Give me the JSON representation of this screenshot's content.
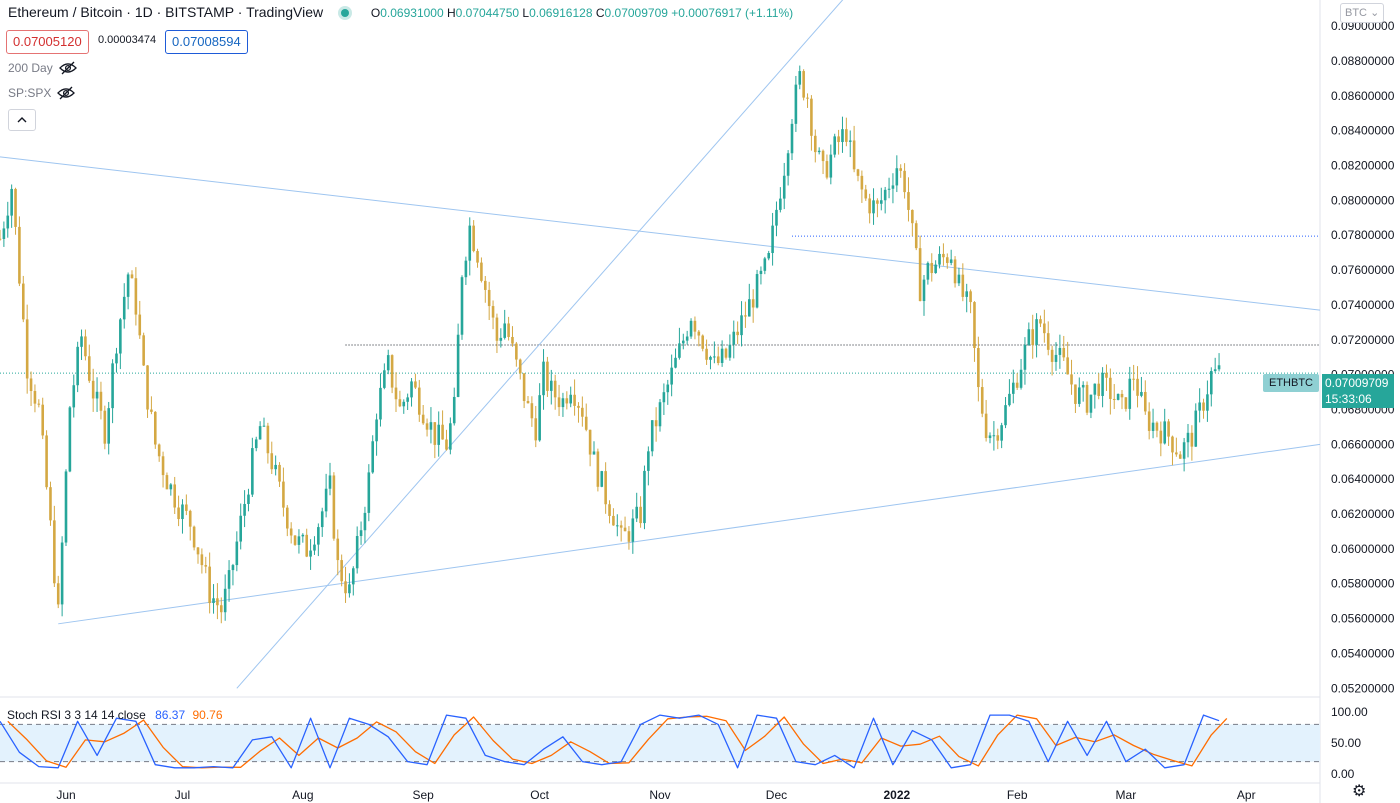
{
  "header": {
    "symbol": "Ethereum / Bitcoin · 1D · BITSTAMP · TradingView",
    "ohlc": {
      "o_label": "O",
      "o": "0.06931000",
      "h_label": "H",
      "h": "0.07044750",
      "l_label": "L",
      "l": "0.06916128",
      "c_label": "C",
      "c": "0.07009709",
      "change": "+0.00076917 (+1.11%)"
    },
    "bid": "0.07005120",
    "spread": "0.00003474",
    "ask": "0.07008594",
    "indicators": [
      "200 Day",
      "SP:SPX"
    ],
    "currency_dropdown": "BTC"
  },
  "price_tags": {
    "symbol": "ETHBTC",
    "price": "0.07009709",
    "countdown": "15:33:06"
  },
  "stoch_rsi": {
    "label": "Stoch RSI 3 3 14 14 close",
    "k": "86.37",
    "d": "90.76",
    "levels": [
      "100.00",
      "50.00",
      "0.00"
    ]
  },
  "colors": {
    "up": "#26a69a",
    "down": "#d4a843",
    "trendline": "#9ec5f0",
    "k_line": "#2962ff",
    "d_line": "#ff6d00",
    "band": "#e3f2fd"
  },
  "chart_data": {
    "type": "candlestick",
    "y_axis_labels": [
      "0.09000000",
      "0.08800000",
      "0.08600000",
      "0.08400000",
      "0.08200000",
      "0.08000000",
      "0.07800000",
      "0.07600000",
      "0.07400000",
      "0.07200000",
      "0.07000000",
      "0.06800000",
      "0.06600000",
      "0.06400000",
      "0.06200000",
      "0.06000000",
      "0.05800000",
      "0.05600000",
      "0.05400000",
      "0.05200000"
    ],
    "ylim": [
      0.0515,
      0.0915
    ],
    "x_axis_labels": [
      "Jun",
      "Jul",
      "Aug",
      "Sep",
      "Oct",
      "Nov",
      "Dec",
      "2022",
      "Feb",
      "Mar",
      "Apr"
    ],
    "x_start": "2021-05-15",
    "x_end": "2022-04-20",
    "close_path": [
      [
        "2021-05-15",
        0.0778
      ],
      [
        "2021-05-18",
        0.0808
      ],
      [
        "2021-05-22",
        0.0705
      ],
      [
        "2021-05-25",
        0.068
      ],
      [
        "2021-05-28",
        0.0612
      ],
      [
        "2021-05-30",
        0.0562
      ],
      [
        "2021-06-02",
        0.0682
      ],
      [
        "2021-06-05",
        0.0722
      ],
      [
        "2021-06-08",
        0.069
      ],
      [
        "2021-06-11",
        0.0668
      ],
      [
        "2021-06-14",
        0.072
      ],
      [
        "2021-06-17",
        0.0758
      ],
      [
        "2021-06-19",
        0.074
      ],
      [
        "2021-06-21",
        0.07
      ],
      [
        "2021-06-24",
        0.066
      ],
      [
        "2021-06-27",
        0.064
      ],
      [
        "2021-06-30",
        0.0625
      ],
      [
        "2021-07-03",
        0.0615
      ],
      [
        "2021-07-05",
        0.06
      ],
      [
        "2021-07-08",
        0.0575
      ],
      [
        "2021-07-11",
        0.0565
      ],
      [
        "2021-07-13",
        0.058
      ],
      [
        "2021-07-16",
        0.0615
      ],
      [
        "2021-07-19",
        0.065
      ],
      [
        "2021-07-21",
        0.067
      ],
      [
        "2021-07-24",
        0.065
      ],
      [
        "2021-07-27",
        0.0625
      ],
      [
        "2021-07-30",
        0.0605
      ],
      [
        "2021-08-02",
        0.06
      ],
      [
        "2021-08-05",
        0.0615
      ],
      [
        "2021-08-08",
        0.0635
      ],
      [
        "2021-08-10",
        0.059
      ],
      [
        "2021-08-13",
        0.0575
      ],
      [
        "2021-08-15",
        0.06
      ],
      [
        "2021-08-18",
        0.064
      ],
      [
        "2021-08-20",
        0.068
      ],
      [
        "2021-08-23",
        0.0705
      ],
      [
        "2021-08-26",
        0.068
      ],
      [
        "2021-08-29",
        0.0695
      ],
      [
        "2021-09-01",
        0.068
      ],
      [
        "2021-09-04",
        0.0665
      ],
      [
        "2021-09-07",
        0.066
      ],
      [
        "2021-09-09",
        0.068
      ],
      [
        "2021-09-11",
        0.076
      ],
      [
        "2021-09-13",
        0.0785
      ],
      [
        "2021-09-15",
        0.077
      ],
      [
        "2021-09-18",
        0.074
      ],
      [
        "2021-09-20",
        0.072
      ],
      [
        "2021-09-22",
        0.073
      ],
      [
        "2021-09-25",
        0.0705
      ],
      [
        "2021-09-28",
        0.068
      ],
      [
        "2021-09-30",
        0.067
      ],
      [
        "2021-10-02",
        0.07
      ],
      [
        "2021-10-04",
        0.069
      ],
      [
        "2021-10-07",
        0.0685
      ],
      [
        "2021-10-09",
        0.0695
      ],
      [
        "2021-10-12",
        0.068
      ],
      [
        "2021-10-15",
        0.065
      ],
      [
        "2021-10-18",
        0.063
      ],
      [
        "2021-10-20",
        0.062
      ],
      [
        "2021-10-22",
        0.0605
      ],
      [
        "2021-10-24",
        0.061
      ],
      [
        "2021-10-27",
        0.062
      ],
      [
        "2021-10-29",
        0.066
      ],
      [
        "2021-11-01",
        0.068
      ],
      [
        "2021-11-04",
        0.07
      ],
      [
        "2021-11-07",
        0.072
      ],
      [
        "2021-11-09",
        0.0735
      ],
      [
        "2021-11-12",
        0.072
      ],
      [
        "2021-11-15",
        0.0705
      ],
      [
        "2021-11-18",
        0.071
      ],
      [
        "2021-11-21",
        0.0725
      ],
      [
        "2021-11-24",
        0.074
      ],
      [
        "2021-11-27",
        0.0755
      ],
      [
        "2021-11-29",
        0.0765
      ],
      [
        "2021-12-01",
        0.0795
      ],
      [
        "2021-12-03",
        0.082
      ],
      [
        "2021-12-05",
        0.085
      ],
      [
        "2021-12-07",
        0.087
      ],
      [
        "2021-12-09",
        0.086
      ],
      [
        "2021-12-11",
        0.083
      ],
      [
        "2021-12-13",
        0.0815
      ],
      [
        "2021-12-16",
        0.083
      ],
      [
        "2021-12-19",
        0.084
      ],
      [
        "2021-12-21",
        0.0815
      ],
      [
        "2021-12-24",
        0.08
      ],
      [
        "2021-12-27",
        0.0795
      ],
      [
        "2021-12-29",
        0.0805
      ],
      [
        "2022-01-01",
        0.082
      ],
      [
        "2022-01-03",
        0.081
      ],
      [
        "2022-01-05",
        0.078
      ],
      [
        "2022-01-07",
        0.075
      ],
      [
        "2022-01-09",
        0.076
      ],
      [
        "2022-01-12",
        0.0765
      ],
      [
        "2022-01-15",
        0.077
      ],
      [
        "2022-01-17",
        0.075
      ],
      [
        "2022-01-20",
        0.0735
      ],
      [
        "2022-01-22",
        0.069
      ],
      [
        "2022-01-24",
        0.067
      ],
      [
        "2022-01-26",
        0.0665
      ],
      [
        "2022-01-29",
        0.068
      ],
      [
        "2022-02-01",
        0.07
      ],
      [
        "2022-02-04",
        0.072
      ],
      [
        "2022-02-07",
        0.073
      ],
      [
        "2022-02-10",
        0.0715
      ],
      [
        "2022-02-13",
        0.0705
      ],
      [
        "2022-02-16",
        0.069
      ],
      [
        "2022-02-19",
        0.0685
      ],
      [
        "2022-02-22",
        0.0695
      ],
      [
        "2022-02-25",
        0.069
      ],
      [
        "2022-02-28",
        0.068
      ],
      [
        "2022-03-03",
        0.07
      ],
      [
        "2022-03-06",
        0.0675
      ],
      [
        "2022-03-09",
        0.067
      ],
      [
        "2022-03-12",
        0.0665
      ],
      [
        "2022-03-15",
        0.0655
      ],
      [
        "2022-03-18",
        0.0665
      ],
      [
        "2022-03-21",
        0.0685
      ],
      [
        "2022-03-23",
        0.07
      ],
      [
        "2022-03-25",
        0.0701
      ]
    ],
    "stoch_path": [
      [
        "2021-05-15",
        85
      ],
      [
        "2021-05-20",
        35
      ],
      [
        "2021-05-25",
        12
      ],
      [
        "2021-05-30",
        10
      ],
      [
        "2021-06-04",
        85
      ],
      [
        "2021-06-09",
        30
      ],
      [
        "2021-06-14",
        90
      ],
      [
        "2021-06-19",
        85
      ],
      [
        "2021-06-24",
        15
      ],
      [
        "2021-06-29",
        10
      ],
      [
        "2021-07-04",
        10
      ],
      [
        "2021-07-09",
        12
      ],
      [
        "2021-07-14",
        10
      ],
      [
        "2021-07-19",
        55
      ],
      [
        "2021-07-24",
        60
      ],
      [
        "2021-07-29",
        10
      ],
      [
        "2021-08-03",
        90
      ],
      [
        "2021-08-08",
        10
      ],
      [
        "2021-08-13",
        90
      ],
      [
        "2021-08-18",
        80
      ],
      [
        "2021-08-23",
        60
      ],
      [
        "2021-08-28",
        20
      ],
      [
        "2021-09-02",
        15
      ],
      [
        "2021-09-07",
        95
      ],
      [
        "2021-09-12",
        90
      ],
      [
        "2021-09-17",
        30
      ],
      [
        "2021-09-22",
        20
      ],
      [
        "2021-09-27",
        15
      ],
      [
        "2021-10-02",
        40
      ],
      [
        "2021-10-07",
        60
      ],
      [
        "2021-10-12",
        20
      ],
      [
        "2021-10-17",
        15
      ],
      [
        "2021-10-22",
        20
      ],
      [
        "2021-10-27",
        80
      ],
      [
        "2021-11-01",
        95
      ],
      [
        "2021-11-06",
        90
      ],
      [
        "2021-11-11",
        95
      ],
      [
        "2021-11-16",
        80
      ],
      [
        "2021-11-21",
        10
      ],
      [
        "2021-11-26",
        95
      ],
      [
        "2021-12-01",
        90
      ],
      [
        "2021-12-06",
        20
      ],
      [
        "2021-12-11",
        15
      ],
      [
        "2021-12-16",
        30
      ],
      [
        "2021-12-21",
        10
      ],
      [
        "2021-12-26",
        90
      ],
      [
        "2021-12-31",
        15
      ],
      [
        "2022-01-05",
        70
      ],
      [
        "2022-01-10",
        55
      ],
      [
        "2022-01-15",
        10
      ],
      [
        "2022-01-20",
        15
      ],
      [
        "2022-01-25",
        95
      ],
      [
        "2022-01-30",
        95
      ],
      [
        "2022-02-04",
        85
      ],
      [
        "2022-02-09",
        20
      ],
      [
        "2022-02-14",
        85
      ],
      [
        "2022-02-19",
        30
      ],
      [
        "2022-02-24",
        85
      ],
      [
        "2022-03-01",
        20
      ],
      [
        "2022-03-06",
        40
      ],
      [
        "2022-03-11",
        10
      ],
      [
        "2022-03-16",
        15
      ],
      [
        "2022-03-21",
        95
      ],
      [
        "2022-03-25",
        86
      ]
    ],
    "trendlines": [
      {
        "from": [
          "2021-05-15",
          0.0825
        ],
        "to": [
          "2022-04-20",
          0.0737
        ]
      },
      {
        "from": [
          "2021-05-30",
          0.0557
        ],
        "to": [
          "2022-04-20",
          0.066
        ]
      },
      {
        "from": [
          "2021-07-15",
          0.052
        ],
        "to": [
          "2021-12-20",
          0.092
        ]
      }
    ],
    "horizontal_levels": [
      {
        "price": 0.07795,
        "from": "2021-12-05",
        "style": "dotted-blue"
      },
      {
        "price": 0.0717,
        "from": "2021-08-12",
        "style": "dotted-dark"
      },
      {
        "price": 0.07009,
        "from": "2021-05-15",
        "style": "dotted-teal"
      }
    ]
  }
}
